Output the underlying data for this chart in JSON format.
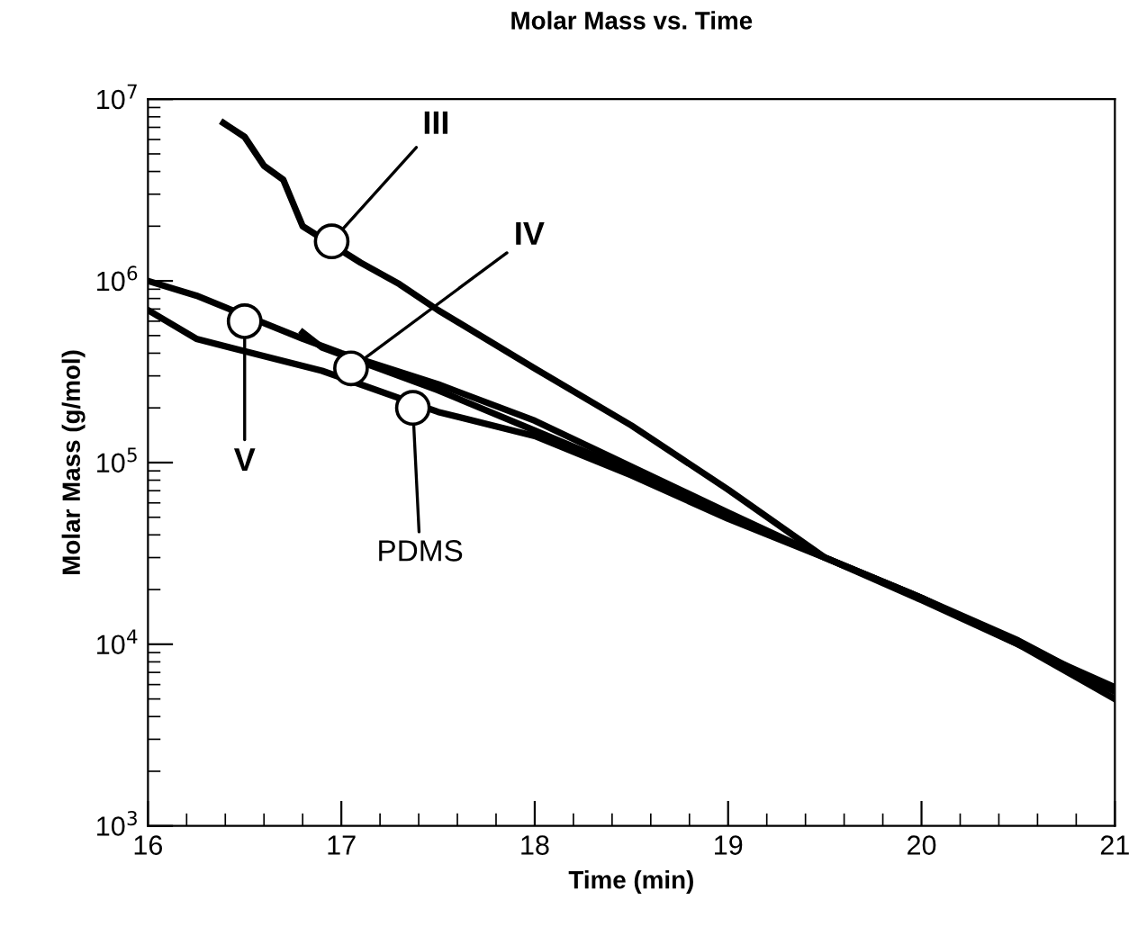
{
  "chart_data": {
    "type": "line",
    "title": "Molar Mass vs. Time",
    "xlabel": "Time (min)",
    "ylabel": "Molar Mass (g/mol)",
    "log": "y",
    "xlim": [
      16,
      21
    ],
    "xticks": [
      16,
      17,
      18,
      19,
      20,
      21
    ],
    "ylim": [
      1000,
      10000000
    ],
    "yticks": [
      {
        "value": 1000,
        "label": "10$^{3}$"
      },
      {
        "value": 10000,
        "label": "10$^{4}$"
      },
      {
        "value": 100000,
        "label": "10$^{5}$"
      },
      {
        "value": 1000000,
        "label": "10$^{6}$"
      },
      {
        "value": 10000000,
        "label": "10$^{7}$"
      }
    ],
    "grid": false,
    "legend": false,
    "marker": "none",
    "line_style": "solid",
    "series": [
      {
        "color": "#000000",
        "x": [
          16.39,
          16.5,
          16.6,
          16.7,
          16.8,
          17.1,
          17.3,
          17.5,
          18,
          18.5,
          19,
          19.5,
          20,
          20.5,
          21
        ],
        "values": [
          7400000,
          6200000,
          4300000,
          3600000,
          2000000,
          1260000,
          960000,
          690000,
          330000,
          160000,
          71000,
          30000,
          18000,
          10000,
          5800
        ]
      },
      {
        "color": "#000000",
        "x": [
          16.8,
          16.9,
          17.5,
          18,
          18.5,
          19,
          19.5,
          20,
          20.5,
          21
        ],
        "values": [
          520000,
          430000,
          250000,
          150000,
          90000,
          51000,
          30000,
          17500,
          10000,
          5500
        ]
      },
      {
        "color": "#000000",
        "x": [
          16,
          16.25,
          16.8,
          17,
          17.5,
          18,
          18.5,
          19,
          19.5,
          20,
          20.5,
          21
        ],
        "values": [
          1000000,
          830000,
          480000,
          400000,
          270000,
          170000,
          95000,
          53000,
          30000,
          18000,
          10000,
          5000
        ]
      },
      {
        "color": "#000000",
        "x": [
          16,
          16.25,
          16.5,
          16.9,
          17.5,
          18,
          18.5,
          19,
          19.5,
          20,
          20.5,
          21
        ],
        "values": [
          690000,
          480000,
          410000,
          320000,
          190000,
          140000,
          85000,
          49000,
          30000,
          18000,
          10500,
          5500
        ]
      }
    ],
    "annotations": [
      {
        "text": "III",
        "x": 16.95,
        "y": 1650000
      },
      {
        "text": "IV",
        "x": 17.05,
        "y": 330000
      },
      {
        "text": "V",
        "x": 16.5,
        "y": 600000
      },
      {
        "text": "PDMS",
        "x": 17.37,
        "y": 200000
      }
    ]
  }
}
